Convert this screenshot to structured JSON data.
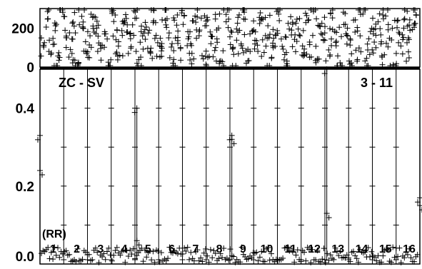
{
  "chart_data": {
    "type": "scatter",
    "panels": [
      {
        "id": "top",
        "ylim": [
          0,
          300
        ],
        "yticks": [
          0,
          200
        ],
        "ytick_labels": [
          "0",
          "200"
        ],
        "xlim": [
          0,
          1
        ],
        "points": [
          [
            0.01,
            112
          ],
          [
            0.02,
            246
          ],
          [
            0.03,
            72
          ],
          [
            0.04,
            187
          ],
          [
            0.05,
            35
          ],
          [
            0.06,
            281
          ],
          [
            0.07,
            150
          ],
          [
            0.08,
            90
          ],
          [
            0.09,
            210
          ],
          [
            0.1,
            15
          ],
          [
            0.11,
            260
          ],
          [
            0.12,
            130
          ],
          [
            0.13,
            48
          ],
          [
            0.14,
            198
          ],
          [
            0.15,
            235
          ],
          [
            0.16,
            95
          ],
          [
            0.17,
            170
          ],
          [
            0.18,
            25
          ],
          [
            0.19,
            275
          ],
          [
            0.2,
            140
          ],
          [
            0.21,
            60
          ],
          [
            0.22,
            222
          ],
          [
            0.23,
            180
          ],
          [
            0.24,
            105
          ],
          [
            0.25,
            250
          ],
          [
            0.26,
            38
          ],
          [
            0.27,
            160
          ],
          [
            0.28,
            205
          ],
          [
            0.29,
            80
          ],
          [
            0.3,
            290
          ],
          [
            0.31,
            125
          ],
          [
            0.32,
            55
          ],
          [
            0.33,
            240
          ],
          [
            0.34,
            175
          ],
          [
            0.35,
            20
          ],
          [
            0.36,
            215
          ],
          [
            0.37,
            100
          ],
          [
            0.38,
            265
          ],
          [
            0.39,
            145
          ],
          [
            0.4,
            70
          ],
          [
            0.41,
            230
          ],
          [
            0.42,
            190
          ],
          [
            0.43,
            42
          ],
          [
            0.44,
            255
          ],
          [
            0.45,
            120
          ],
          [
            0.46,
            85
          ],
          [
            0.47,
            200
          ],
          [
            0.48,
            28
          ],
          [
            0.49,
            270
          ],
          [
            0.5,
            155
          ],
          [
            0.51,
            65
          ],
          [
            0.52,
            225
          ],
          [
            0.53,
            110
          ],
          [
            0.54,
            245
          ],
          [
            0.55,
            33
          ],
          [
            0.56,
            185
          ],
          [
            0.57,
            135
          ],
          [
            0.58,
            278
          ],
          [
            0.59,
            75
          ],
          [
            0.6,
            212
          ],
          [
            0.61,
            50
          ],
          [
            0.62,
            165
          ],
          [
            0.63,
            238
          ],
          [
            0.64,
            92
          ],
          [
            0.65,
            18
          ],
          [
            0.66,
            258
          ],
          [
            0.67,
            142
          ],
          [
            0.68,
            195
          ],
          [
            0.69,
            62
          ],
          [
            0.7,
            228
          ],
          [
            0.71,
            115
          ],
          [
            0.72,
            285
          ],
          [
            0.73,
            40
          ],
          [
            0.74,
            172
          ],
          [
            0.75,
            208
          ],
          [
            0.76,
            88
          ],
          [
            0.77,
            252
          ],
          [
            0.78,
            132
          ],
          [
            0.79,
            22
          ],
          [
            0.8,
            218
          ],
          [
            0.81,
            160
          ],
          [
            0.82,
            68
          ],
          [
            0.83,
            242
          ],
          [
            0.84,
            98
          ],
          [
            0.85,
            272
          ],
          [
            0.86,
            45
          ],
          [
            0.87,
            182
          ],
          [
            0.88,
            128
          ],
          [
            0.89,
            232
          ],
          [
            0.9,
            58
          ],
          [
            0.91,
            262
          ],
          [
            0.92,
            148
          ],
          [
            0.93,
            12
          ],
          [
            0.94,
            202
          ],
          [
            0.95,
            108
          ],
          [
            0.96,
            248
          ],
          [
            0.97,
            78
          ],
          [
            0.98,
            192
          ],
          [
            0.99,
            268
          ]
        ]
      },
      {
        "id": "main",
        "ylim": [
          0,
          0.5
        ],
        "yticks": [
          0.0,
          0.2,
          0.4
        ],
        "ytick_labels": [
          "0.0",
          "0.2",
          "0.4"
        ],
        "xlim": [
          0,
          1
        ],
        "baseline_range": [
          0.0,
          0.04
        ],
        "peaks": [
          {
            "x": 0.0,
            "values": [
              0.33,
              0.24
            ]
          },
          {
            "x": 0.255,
            "values": [
              0.4,
              0.06
            ]
          },
          {
            "x": 0.505,
            "values": [
              0.33,
              0.32
            ]
          },
          {
            "x": 0.755,
            "values": [
              0.5,
              0.13
            ]
          },
          {
            "x": 1.0,
            "values": [
              0.17,
              0.15
            ]
          }
        ]
      }
    ],
    "segments": 16,
    "segment_labels": [
      "1",
      "2",
      "3",
      "4",
      "5",
      "6",
      "7",
      "8",
      "9",
      "10",
      "11",
      "12",
      "13",
      "14",
      "15",
      "16"
    ],
    "annotations": {
      "left": "ZC - SV",
      "right": "3 - 11",
      "rr": "(RR)"
    }
  }
}
